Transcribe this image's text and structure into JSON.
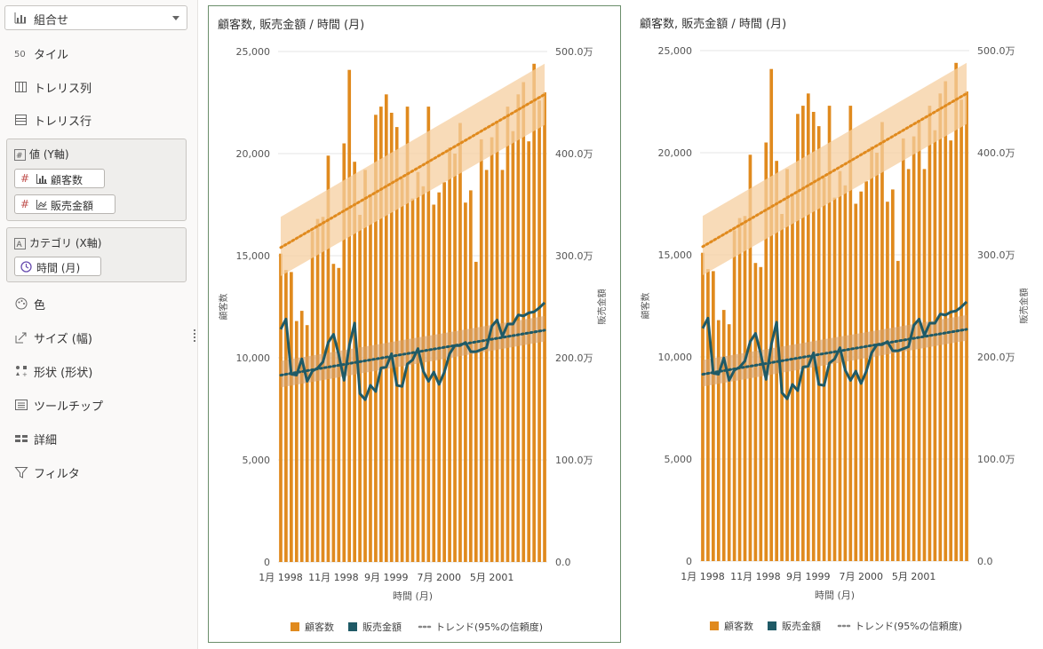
{
  "sidebar": {
    "chart_type": "組合せ",
    "items_top": [
      {
        "label": "タイル",
        "icon": "tile-icon"
      },
      {
        "label": "トレリス列",
        "icon": "trellis-columns-icon"
      },
      {
        "label": "トレリス行",
        "icon": "trellis-rows-icon"
      }
    ],
    "values_well": {
      "title": "値 (Y軸)",
      "pills": [
        {
          "label": "顧客数",
          "icon": "bar-chart-icon"
        },
        {
          "label": "販売金額",
          "icon": "line-chart-icon"
        }
      ]
    },
    "category_well": {
      "title": "カテゴリ (X軸)",
      "pills": [
        {
          "label": "時間 (月)",
          "icon": "clock-icon"
        }
      ]
    },
    "items_bottom": [
      {
        "label": "色",
        "icon": "palette-icon"
      },
      {
        "label": "サイズ (幅)",
        "icon": "size-icon"
      },
      {
        "label": "形状 (形状)",
        "icon": "shape-icon"
      },
      {
        "label": "ツールチップ",
        "icon": "tooltip-icon"
      },
      {
        "label": "詳細",
        "icon": "detail-icon"
      },
      {
        "label": "フィルタ",
        "icon": "filter-icon"
      }
    ]
  },
  "colors": {
    "bar": "#e08a1e",
    "line": "#1f5a66",
    "band_bar": "#f6cfa0",
    "band_line": "#d7a26a",
    "accent": "#c0504d"
  },
  "chart_data": [
    {
      "type": "bar+line",
      "title": "顧客数, 販売金額 / 時間 (月)",
      "xlabel": "時間 (月)",
      "ylabel_left": "顧客数",
      "ylabel_right": "販売金額",
      "ylim_left": [
        0,
        25000
      ],
      "ylim_right": [
        0,
        5000000
      ],
      "yticks_left": [
        "0",
        "5,000",
        "10,000",
        "15,000",
        "20,000",
        "25,000"
      ],
      "yticks_right": [
        "0.0",
        "100.0万",
        "200.0万",
        "300.0万",
        "400.0万",
        "500.0万"
      ],
      "xticks": [
        {
          "label": "1月 1998",
          "index": 0
        },
        {
          "label": "11月 1998",
          "index": 10
        },
        {
          "label": "9月 1999",
          "index": 20
        },
        {
          "label": "7月 2000",
          "index": 30
        },
        {
          "label": "5月 2001",
          "index": 40
        }
      ],
      "legend": [
        "顧客数",
        "販売金額",
        "トレンド(95%の信頼度)"
      ],
      "series": [
        {
          "name": "顧客数",
          "axis": "left",
          "values": [
            15100,
            14300,
            14200,
            11800,
            12300,
            11600,
            16200,
            16800,
            16900,
            19900,
            14600,
            14400,
            20500,
            24100,
            19600,
            17000,
            19200,
            18000,
            21900,
            22300,
            22900,
            22000,
            21300,
            18800,
            22300,
            17800,
            19100,
            18400,
            22300,
            17500,
            18100,
            18600,
            20300,
            20000,
            21500,
            17600,
            18200,
            14700,
            20700,
            19200,
            20800,
            21600,
            19200,
            22300,
            21100,
            22900,
            23500,
            20600,
            24400,
            22600,
            23000
          ]
        },
        {
          "name": "販売金額",
          "axis": "right",
          "values": [
            2280000,
            2380000,
            1840000,
            1830000,
            1990000,
            1770000,
            1870000,
            1900000,
            1960000,
            2150000,
            2230000,
            2030000,
            1780000,
            2120000,
            2340000,
            1650000,
            1590000,
            1730000,
            1670000,
            1900000,
            1910000,
            2040000,
            1730000,
            1720000,
            1940000,
            1980000,
            2090000,
            1870000,
            1770000,
            1860000,
            1740000,
            1860000,
            2040000,
            2120000,
            2120000,
            2150000,
            2060000,
            2060000,
            2080000,
            2100000,
            2310000,
            2370000,
            2210000,
            2330000,
            2330000,
            2420000,
            2410000,
            2440000,
            2450000,
            2490000,
            2540000
          ]
        },
        {
          "name": "トレンド 顧客数",
          "axis": "left",
          "trend": [
            15400,
            22900
          ],
          "band_start": [
            14000,
            16900
          ],
          "band_end": [
            21400,
            24400
          ]
        },
        {
          "name": "トレンド 販売金額",
          "axis": "right",
          "trend": [
            1830000,
            2270000
          ],
          "band_start": [
            1710000,
            1970000
          ],
          "band_end": [
            2160000,
            2410000
          ]
        }
      ]
    },
    {
      "type": "bar+line",
      "title": "顧客数, 販売金額 / 時間 (月)",
      "xlabel": "時間 (月)",
      "ylabel_left": "顧客数",
      "ylabel_right": "販売金額",
      "ylim_left": [
        0,
        25000
      ],
      "ylim_right": [
        0,
        5000000
      ],
      "yticks_left": [
        "0",
        "5,000",
        "10,000",
        "15,000",
        "20,000",
        "25,000"
      ],
      "yticks_right": [
        "0.0",
        "100.0万",
        "200.0万",
        "300.0万",
        "400.0万",
        "500.0万"
      ],
      "xticks": [
        {
          "label": "1月 1998",
          "index": 0
        },
        {
          "label": "11月 1998",
          "index": 10
        },
        {
          "label": "9月 1999",
          "index": 20
        },
        {
          "label": "7月 2000",
          "index": 30
        },
        {
          "label": "5月 2001",
          "index": 40
        }
      ],
      "legend": [
        "顧客数",
        "販売金額",
        "トレンド(95%の信頼度)"
      ],
      "series": [
        {
          "name": "顧客数",
          "axis": "left",
          "values": [
            15100,
            14300,
            14200,
            11800,
            12300,
            11600,
            16200,
            16800,
            16900,
            19900,
            14600,
            14400,
            20500,
            24100,
            19600,
            17000,
            19200,
            18000,
            21900,
            22300,
            22900,
            22000,
            21300,
            18800,
            22300,
            17800,
            19100,
            18400,
            22300,
            17500,
            18100,
            18600,
            20300,
            20000,
            21500,
            17600,
            18200,
            14700,
            20700,
            19200,
            20800,
            21600,
            19200,
            22300,
            21100,
            22900,
            23500,
            20600,
            24400,
            22600,
            23000
          ]
        },
        {
          "name": "販売金額",
          "axis": "right",
          "values": [
            2280000,
            2380000,
            1840000,
            1830000,
            1990000,
            1770000,
            1870000,
            1900000,
            1960000,
            2150000,
            2230000,
            2030000,
            1780000,
            2120000,
            2340000,
            1650000,
            1590000,
            1730000,
            1670000,
            1900000,
            1910000,
            2040000,
            1730000,
            1720000,
            1940000,
            1980000,
            2090000,
            1870000,
            1770000,
            1860000,
            1740000,
            1860000,
            2040000,
            2120000,
            2120000,
            2150000,
            2060000,
            2060000,
            2080000,
            2100000,
            2310000,
            2370000,
            2210000,
            2330000,
            2330000,
            2420000,
            2410000,
            2440000,
            2450000,
            2490000,
            2540000
          ]
        },
        {
          "name": "トレンド 顧客数",
          "axis": "left",
          "trend": [
            15400,
            22900
          ],
          "band_start": [
            14000,
            16900
          ],
          "band_end": [
            21400,
            24400
          ]
        },
        {
          "name": "トレンド 販売金額",
          "axis": "right",
          "trend": [
            1830000,
            2270000
          ],
          "band_start": [
            1710000,
            1970000
          ],
          "band_end": [
            2160000,
            2410000
          ]
        }
      ]
    }
  ]
}
